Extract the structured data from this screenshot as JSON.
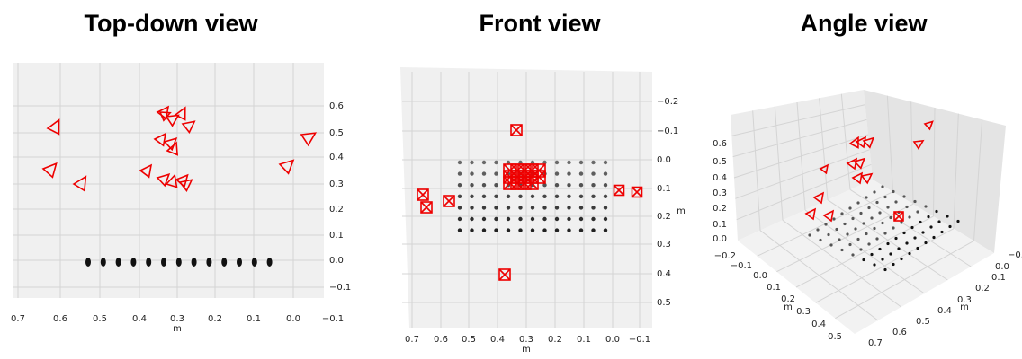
{
  "panels": [
    {
      "title": "Top-down view",
      "z_ticks": [
        "0.6",
        "0.5",
        "0.4",
        "0.3",
        "0.2",
        "0.1",
        "0.0",
        "−0.1"
      ],
      "x_ticks": [
        "0.7",
        "0.6",
        "0.5",
        "0.4",
        "0.3",
        "0.2",
        "0.1",
        "0.0",
        "−0.1"
      ],
      "x_label": "m"
    },
    {
      "title": "Front view",
      "z_ticks": [
        "−0.2",
        "−0.1",
        "0.0",
        "0.1",
        "0.2",
        "0.3",
        "0.4",
        "0.5"
      ],
      "x_ticks": [
        "0.7",
        "0.6",
        "0.5",
        "0.4",
        "0.3",
        "0.2",
        "0.1",
        "0.0",
        "−0.1"
      ],
      "x_label": "m",
      "y_label": "m"
    },
    {
      "title": "Angle view",
      "z_ticks": [
        "0.6",
        "0.5",
        "0.4",
        "0.3",
        "0.2",
        "0.1",
        "0.0"
      ],
      "x_ticks": [
        "−0.2",
        "−0.1",
        "0.0",
        "0.1",
        "0.2",
        "0.3",
        "0.4",
        "0.5"
      ],
      "y_ticks": [
        "0.7",
        "0.6",
        "0.5",
        "0.4",
        "0.3",
        "0.2",
        "0.1",
        "0.0",
        "−0.1"
      ],
      "x_label": "m",
      "y_label": "m"
    }
  ]
}
